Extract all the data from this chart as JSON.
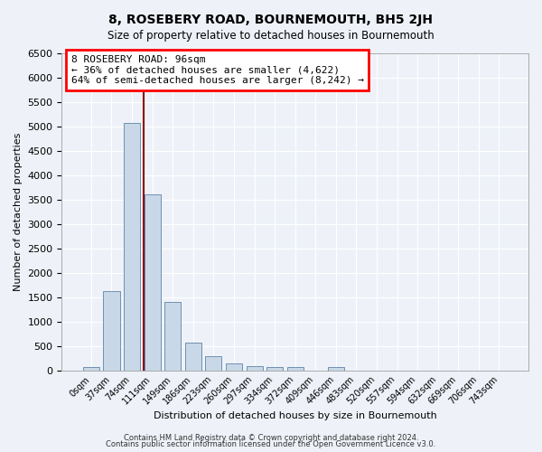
{
  "title": "8, ROSEBERY ROAD, BOURNEMOUTH, BH5 2JH",
  "subtitle": "Size of property relative to detached houses in Bournemouth",
  "xlabel": "Distribution of detached houses by size in Bournemouth",
  "ylabel": "Number of detached properties",
  "bar_labels": [
    "0sqm",
    "37sqm",
    "74sqm",
    "111sqm",
    "149sqm",
    "186sqm",
    "223sqm",
    "260sqm",
    "297sqm",
    "334sqm",
    "372sqm",
    "409sqm",
    "446sqm",
    "483sqm",
    "520sqm",
    "557sqm",
    "594sqm",
    "632sqm",
    "669sqm",
    "706sqm",
    "743sqm"
  ],
  "bar_values": [
    75,
    1625,
    5075,
    3600,
    1400,
    575,
    285,
    145,
    90,
    65,
    65,
    0,
    65,
    0,
    0,
    0,
    0,
    0,
    0,
    0,
    0
  ],
  "bar_color": "#c8d8e8",
  "bar_edge_color": "#7090b0",
  "bar_width": 0.8,
  "vline_color": "#8b0000",
  "ylim": [
    0,
    6500
  ],
  "yticks": [
    0,
    500,
    1000,
    1500,
    2000,
    2500,
    3000,
    3500,
    4000,
    4500,
    5000,
    5500,
    6000,
    6500
  ],
  "annotation_text": "8 ROSEBERY ROAD: 96sqm\n← 36% of detached houses are smaller (4,622)\n64% of semi-detached houses are larger (8,242) →",
  "bg_color": "#eef2f8",
  "grid_color": "#ffffff",
  "footer_line1": "Contains HM Land Registry data © Crown copyright and database right 2024.",
  "footer_line2": "Contains public sector information licensed under the Open Government Licence v3.0."
}
